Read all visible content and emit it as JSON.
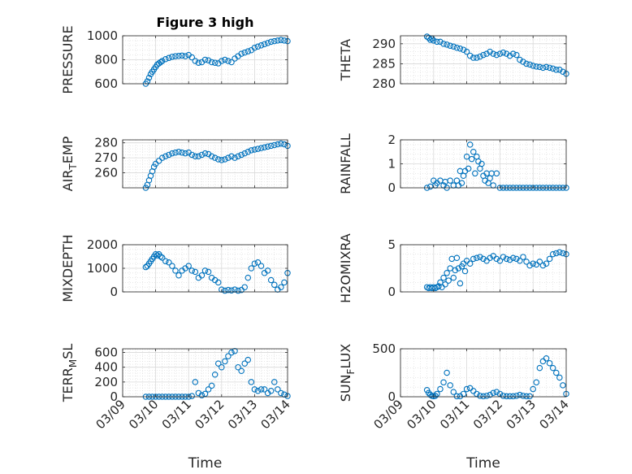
{
  "figure": {
    "title": "Figure 3 high"
  },
  "colors": {
    "marker": "#0072bd",
    "grid": "#d9d9d9",
    "axis": "#262626",
    "frame": "#262626"
  },
  "chart_data": [
    {
      "type": "scatter",
      "title": "Figure 3 high",
      "ylabel": "PRESSURE",
      "xlabel": "",
      "ylim": [
        600,
        1000
      ],
      "yticks": [
        600,
        800,
        1000
      ],
      "xlim": [
        0,
        5
      ],
      "xticklabels": [
        "03/09",
        "03/10",
        "03/11",
        "03/12",
        "03/13",
        "03/14"
      ],
      "grid": true,
      "x": [
        0.7,
        0.75,
        0.8,
        0.85,
        0.9,
        0.95,
        1.0,
        1.05,
        1.1,
        1.15,
        1.2,
        1.3,
        1.4,
        1.5,
        1.6,
        1.7,
        1.8,
        1.9,
        2.0,
        2.1,
        2.2,
        2.3,
        2.4,
        2.5,
        2.6,
        2.7,
        2.8,
        2.9,
        3.0,
        3.1,
        3.2,
        3.3,
        3.4,
        3.5,
        3.6,
        3.7,
        3.8,
        3.9,
        4.0,
        4.1,
        4.2,
        4.3,
        4.4,
        4.5,
        4.6,
        4.7,
        4.8,
        4.9,
        5.0
      ],
      "y": [
        600,
        620,
        650,
        680,
        700,
        720,
        740,
        760,
        770,
        780,
        790,
        805,
        815,
        825,
        830,
        832,
        835,
        830,
        840,
        820,
        790,
        775,
        780,
        800,
        795,
        780,
        775,
        770,
        790,
        800,
        790,
        780,
        810,
        830,
        850,
        860,
        870,
        880,
        900,
        910,
        920,
        930,
        940,
        950,
        955,
        960,
        965,
        960,
        955
      ]
    },
    {
      "type": "scatter",
      "ylabel": "THETA",
      "xlabel": "",
      "ylim": [
        280,
        292
      ],
      "yticks": [
        280,
        285,
        290
      ],
      "xlim": [
        0,
        5
      ],
      "xticklabels": [
        "03/09",
        "03/10",
        "03/11",
        "03/12",
        "03/13",
        "03/14"
      ],
      "grid": true,
      "x": [
        0.8,
        0.85,
        0.9,
        0.95,
        1.0,
        1.1,
        1.2,
        1.3,
        1.4,
        1.5,
        1.6,
        1.7,
        1.8,
        1.9,
        2.0,
        2.1,
        2.2,
        2.3,
        2.4,
        2.5,
        2.6,
        2.7,
        2.8,
        2.9,
        3.0,
        3.1,
        3.2,
        3.3,
        3.4,
        3.5,
        3.6,
        3.7,
        3.8,
        3.9,
        4.0,
        4.1,
        4.2,
        4.3,
        4.4,
        4.5,
        4.6,
        4.7,
        4.8,
        4.9,
        5.0
      ],
      "y": [
        291.8,
        291.5,
        291.0,
        291.3,
        290.8,
        290.5,
        290.5,
        290.0,
        289.8,
        289.5,
        289.3,
        289.0,
        288.8,
        288.5,
        288.0,
        287.0,
        286.5,
        286.5,
        286.8,
        287.2,
        287.5,
        288.0,
        287.5,
        287.2,
        287.5,
        287.8,
        287.5,
        287.0,
        287.5,
        287.2,
        286.0,
        285.5,
        285.0,
        284.8,
        284.5,
        284.3,
        284.2,
        284.0,
        284.2,
        284.0,
        283.8,
        283.5,
        283.5,
        283.0,
        282.5
      ]
    },
    {
      "type": "scatter",
      "ylabel": "AIR_TEMP",
      "xlabel": "",
      "ylim": [
        250,
        282
      ],
      "yticks": [
        260,
        270,
        280
      ],
      "xlim": [
        0,
        5
      ],
      "xticklabels": [
        "03/09",
        "03/10",
        "03/11",
        "03/12",
        "03/13",
        "03/14"
      ],
      "grid": true,
      "x": [
        0.7,
        0.75,
        0.8,
        0.85,
        0.9,
        0.95,
        1.0,
        1.1,
        1.2,
        1.3,
        1.4,
        1.5,
        1.6,
        1.7,
        1.8,
        1.9,
        2.0,
        2.1,
        2.2,
        2.3,
        2.4,
        2.5,
        2.6,
        2.7,
        2.8,
        2.9,
        3.0,
        3.1,
        3.2,
        3.3,
        3.4,
        3.5,
        3.6,
        3.7,
        3.8,
        3.9,
        4.0,
        4.1,
        4.2,
        4.3,
        4.4,
        4.5,
        4.6,
        4.7,
        4.8,
        4.9,
        5.0
      ],
      "y": [
        250,
        252,
        255,
        258,
        261,
        264,
        266,
        268,
        270,
        271,
        272,
        273,
        273.5,
        274,
        273.5,
        273,
        273.5,
        272,
        271,
        271,
        272,
        273,
        272.5,
        271,
        270,
        269,
        268.5,
        269,
        270,
        271,
        270,
        271,
        272,
        273,
        274,
        275,
        275.5,
        276,
        276.5,
        277,
        277.5,
        278,
        278.5,
        279,
        279.5,
        279,
        278
      ]
    },
    {
      "type": "scatter",
      "ylabel": "RAINFALL",
      "xlabel": "",
      "ylim": [
        0,
        2
      ],
      "yticks": [
        0,
        1,
        2
      ],
      "xlim": [
        0,
        5
      ],
      "xticklabels": [
        "03/09",
        "03/10",
        "03/11",
        "03/12",
        "03/13",
        "03/14"
      ],
      "grid": true,
      "x": [
        0.8,
        0.9,
        1.0,
        1.05,
        1.1,
        1.2,
        1.3,
        1.35,
        1.4,
        1.5,
        1.6,
        1.7,
        1.75,
        1.8,
        1.85,
        1.9,
        1.95,
        2.0,
        2.05,
        2.1,
        2.15,
        2.2,
        2.25,
        2.3,
        2.35,
        2.4,
        2.45,
        2.5,
        2.55,
        2.6,
        2.65,
        2.7,
        2.75,
        2.8,
        2.9,
        3.0,
        3.1,
        3.2,
        3.3,
        3.4,
        3.5,
        3.6,
        3.7,
        3.8,
        3.9,
        4.0,
        4.1,
        4.2,
        4.3,
        4.4,
        4.5,
        4.6,
        4.7,
        4.8,
        4.9,
        5.0
      ],
      "y": [
        0,
        0.05,
        0.3,
        0.1,
        0.2,
        0.3,
        0.1,
        0.25,
        0,
        0.3,
        0.1,
        0.3,
        0.1,
        0.7,
        0.2,
        0.5,
        0.7,
        1.3,
        0.8,
        1.8,
        1.2,
        1.5,
        0.6,
        1.3,
        1.1,
        0.8,
        1.0,
        0.5,
        0.3,
        0.6,
        0.2,
        0.4,
        0.6,
        0.1,
        0.6,
        0,
        0,
        0,
        0,
        0,
        0,
        0,
        0,
        0,
        0,
        0,
        0,
        0,
        0,
        0,
        0,
        0,
        0,
        0,
        0,
        0
      ]
    },
    {
      "type": "scatter",
      "ylabel": "MIXDEPTH",
      "xlabel": "",
      "ylim": [
        0,
        2000
      ],
      "yticks": [
        0,
        1000,
        2000
      ],
      "xlim": [
        0,
        5
      ],
      "xticklabels": [
        "03/09",
        "03/10",
        "03/11",
        "03/12",
        "03/13",
        "03/14"
      ],
      "grid": true,
      "x": [
        0.7,
        0.75,
        0.8,
        0.85,
        0.9,
        0.95,
        1.0,
        1.05,
        1.1,
        1.15,
        1.2,
        1.3,
        1.4,
        1.5,
        1.6,
        1.7,
        1.8,
        1.9,
        2.0,
        2.1,
        2.2,
        2.3,
        2.4,
        2.5,
        2.6,
        2.7,
        2.8,
        2.9,
        3.0,
        3.1,
        3.2,
        3.3,
        3.4,
        3.5,
        3.6,
        3.7,
        3.8,
        3.9,
        4.0,
        4.1,
        4.2,
        4.3,
        4.4,
        4.5,
        4.6,
        4.7,
        4.8,
        4.9,
        5.0
      ],
      "y": [
        1050,
        1100,
        1200,
        1300,
        1400,
        1500,
        1600,
        1550,
        1600,
        1500,
        1450,
        1300,
        1250,
        1100,
        900,
        700,
        900,
        1000,
        1100,
        900,
        850,
        600,
        700,
        900,
        850,
        600,
        500,
        400,
        100,
        50,
        80,
        60,
        100,
        50,
        80,
        200,
        600,
        1000,
        1200,
        1250,
        1100,
        800,
        900,
        500,
        300,
        100,
        200,
        400,
        800
      ]
    },
    {
      "type": "scatter",
      "ylabel": "H2OMIXRA",
      "xlabel": "",
      "ylim": [
        0,
        5
      ],
      "yticks": [
        0,
        5
      ],
      "xlim": [
        0,
        5
      ],
      "xticklabels": [
        "03/09",
        "03/10",
        "03/11",
        "03/12",
        "03/13",
        "03/14"
      ],
      "grid": true,
      "x": [
        0.8,
        0.85,
        0.9,
        0.95,
        1.0,
        1.05,
        1.1,
        1.15,
        1.2,
        1.25,
        1.3,
        1.35,
        1.4,
        1.45,
        1.5,
        1.55,
        1.6,
        1.65,
        1.7,
        1.75,
        1.8,
        1.85,
        1.9,
        1.95,
        2.0,
        2.1,
        2.2,
        2.3,
        2.4,
        2.5,
        2.6,
        2.7,
        2.8,
        2.9,
        3.0,
        3.1,
        3.2,
        3.3,
        3.4,
        3.5,
        3.6,
        3.7,
        3.8,
        3.9,
        4.0,
        4.1,
        4.2,
        4.3,
        4.4,
        4.5,
        4.6,
        4.7,
        4.8,
        4.9,
        5.0
      ],
      "y": [
        0.5,
        0.4,
        0.5,
        0.4,
        0.5,
        0.4,
        0.5,
        0.6,
        1.0,
        0.5,
        1.5,
        0.8,
        2.0,
        1.2,
        2.5,
        3.5,
        1.5,
        2.3,
        3.6,
        2.5,
        0.9,
        2.7,
        3.0,
        2.2,
        3.3,
        3.0,
        3.5,
        3.6,
        3.7,
        3.5,
        3.3,
        3.6,
        3.8,
        3.5,
        3.3,
        3.7,
        3.5,
        3.4,
        3.6,
        3.5,
        3.3,
        3.7,
        3.2,
        2.8,
        3.0,
        2.9,
        3.2,
        2.8,
        3.0,
        3.5,
        4.0,
        4.1,
        4.2,
        4.1,
        4.0
      ]
    },
    {
      "type": "scatter",
      "ylabel": "TERR_MSL",
      "xlabel": "Time",
      "ylim": [
        0,
        650
      ],
      "yticks": [
        0,
        200,
        400,
        600
      ],
      "xlim": [
        0,
        5
      ],
      "xticklabels": [
        "03/09",
        "03/10",
        "03/11",
        "03/12",
        "03/13",
        "03/14"
      ],
      "grid": true,
      "x": [
        0.7,
        0.8,
        0.9,
        1.0,
        1.1,
        1.2,
        1.3,
        1.4,
        1.5,
        1.6,
        1.7,
        1.8,
        1.9,
        2.0,
        2.1,
        2.2,
        2.3,
        2.4,
        2.5,
        2.6,
        2.7,
        2.8,
        2.9,
        3.0,
        3.1,
        3.2,
        3.3,
        3.4,
        3.5,
        3.6,
        3.7,
        3.8,
        3.9,
        4.0,
        4.1,
        4.2,
        4.3,
        4.4,
        4.5,
        4.6,
        4.7,
        4.8,
        4.9,
        5.0
      ],
      "y": [
        0,
        0,
        0,
        0,
        0,
        0,
        0,
        0,
        0,
        0,
        0,
        0,
        0,
        0,
        10,
        200,
        50,
        20,
        40,
        100,
        150,
        300,
        450,
        400,
        480,
        550,
        600,
        620,
        400,
        350,
        450,
        500,
        200,
        100,
        80,
        100,
        100,
        50,
        80,
        200,
        100,
        50,
        30,
        10
      ]
    },
    {
      "type": "scatter",
      "ylabel": "SUN_FLUX",
      "xlabel": "Time",
      "ylim": [
        0,
        500
      ],
      "yticks": [
        0,
        500
      ],
      "xlim": [
        0,
        5
      ],
      "xticklabels": [
        "03/09",
        "03/10",
        "03/11",
        "03/12",
        "03/13",
        "03/14"
      ],
      "grid": true,
      "x": [
        0.8,
        0.85,
        0.9,
        0.95,
        1.0,
        1.05,
        1.1,
        1.2,
        1.3,
        1.4,
        1.5,
        1.6,
        1.7,
        1.8,
        1.9,
        2.0,
        2.1,
        2.2,
        2.3,
        2.4,
        2.5,
        2.6,
        2.7,
        2.8,
        2.9,
        3.0,
        3.1,
        3.2,
        3.3,
        3.4,
        3.5,
        3.6,
        3.7,
        3.8,
        3.9,
        4.0,
        4.1,
        4.2,
        4.3,
        4.4,
        4.5,
        4.6,
        4.7,
        4.8,
        4.9,
        5.0
      ],
      "y": [
        70,
        40,
        20,
        10,
        5,
        10,
        30,
        80,
        150,
        250,
        120,
        50,
        5,
        5,
        30,
        80,
        90,
        60,
        30,
        10,
        5,
        10,
        20,
        40,
        50,
        30,
        10,
        5,
        5,
        5,
        10,
        20,
        10,
        5,
        5,
        80,
        150,
        300,
        370,
        400,
        350,
        300,
        250,
        200,
        120,
        30
      ]
    }
  ]
}
